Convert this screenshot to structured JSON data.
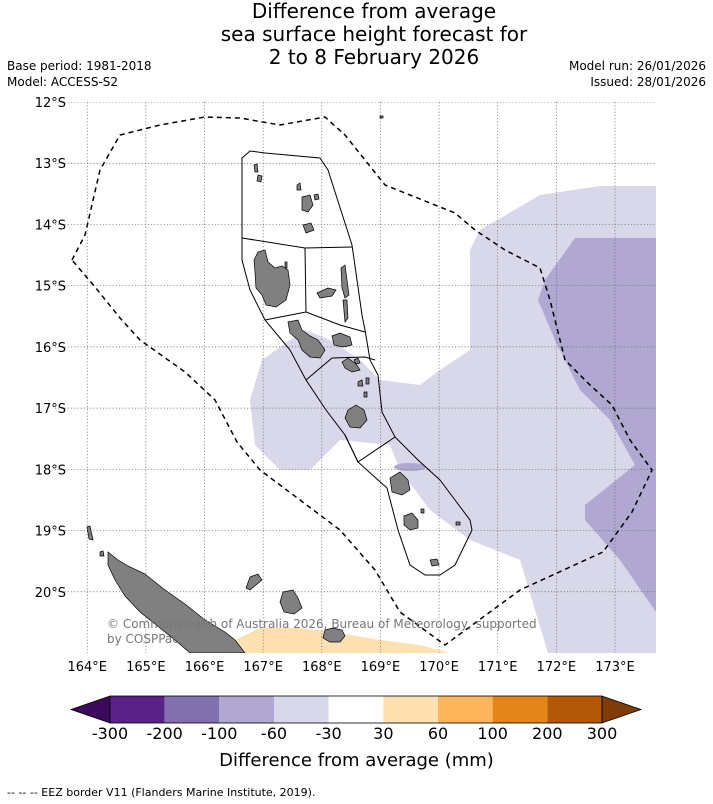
{
  "title_lines": [
    "Difference from average",
    "sea surface height forecast for",
    "2 to 8 February 2026"
  ],
  "meta_left": [
    "Base period: 1981-2018",
    "Model: ACCESS-S2"
  ],
  "meta_right": [
    "Model run: 26/01/2026",
    "Issued: 28/01/2026"
  ],
  "latitudes": [
    "12°S",
    "13°S",
    "14°S",
    "15°S",
    "16°S",
    "17°S",
    "18°S",
    "19°S",
    "20°S"
  ],
  "longitudes": [
    "164°E",
    "165°E",
    "166°E",
    "167°E",
    "168°E",
    "169°E",
    "170°E",
    "171°E",
    "172°E",
    "173°E"
  ],
  "map_extent": {
    "lon_min": 163.45,
    "lon_max": 173.7,
    "lat_min": -21.0,
    "lat_max": -12.0
  },
  "copyright": [
    "© Commonwealth of Australia 2026, Bureau of Meteorology, supported",
    "by COSPPac"
  ],
  "colorbar": {
    "labels": [
      "-300",
      "-200",
      "-100",
      "-60",
      "-30",
      "30",
      "60",
      "100",
      "200",
      "300"
    ],
    "colors": [
      "#5a2288",
      "#8070ad",
      "#b0a8d0",
      "#d8d8ea",
      "#ffffff",
      "#ffe0b0",
      "#fdb55c",
      "#e38518",
      "#b35807"
    ],
    "extend_low": "#3c0a5c",
    "extend_high": "#7f3b08",
    "title": "Difference from average (mm)"
  },
  "footer": "--  --  -- EEZ border V11 (Flanders Marine Institute, 2019)."
}
